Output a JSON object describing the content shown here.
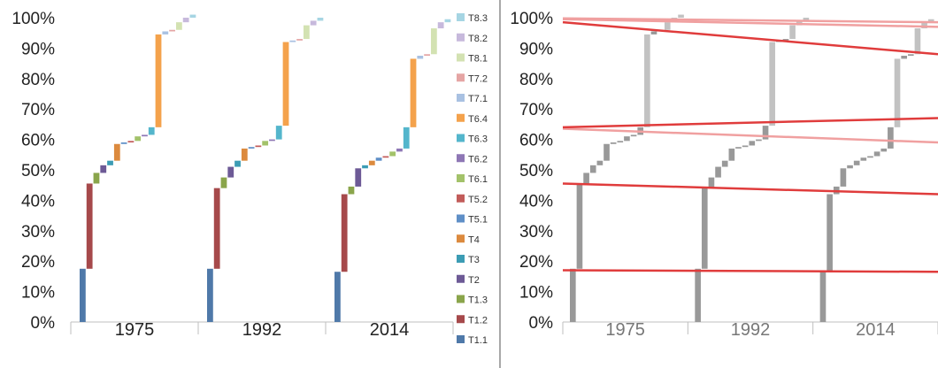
{
  "chart_data": [
    {
      "type": "bar",
      "subtype": "waterfall",
      "title": "",
      "xlabel": "",
      "ylabel": "",
      "ylim": [
        0,
        100
      ],
      "y_ticks": [
        "0%",
        "10%",
        "20%",
        "30%",
        "40%",
        "50%",
        "60%",
        "70%",
        "80%",
        "90%",
        "100%"
      ],
      "categories": [
        "1975",
        "1992",
        "2014"
      ],
      "legend": {
        "position": "right"
      },
      "series": [
        {
          "name": "T1.1",
          "color": "#4f79a9",
          "values": [
            17.5,
            17.5,
            16.5
          ]
        },
        {
          "name": "T1.2",
          "color": "#a6494b",
          "values": [
            28,
            26.5,
            25.5
          ]
        },
        {
          "name": "T1.3",
          "color": "#8aa54b",
          "values": [
            3.5,
            3.5,
            2.5
          ]
        },
        {
          "name": "T2",
          "color": "#6d5a96",
          "values": [
            2.5,
            3.5,
            6
          ]
        },
        {
          "name": "T3",
          "color": "#3c9cb4",
          "values": [
            1.5,
            2,
            1
          ]
        },
        {
          "name": "T4",
          "color": "#dc8a3e",
          "values": [
            5.5,
            4,
            1.5
          ]
        },
        {
          "name": "T5.1",
          "color": "#5f8fc7",
          "values": [
            0.5,
            0.5,
            1
          ]
        },
        {
          "name": "T5.2",
          "color": "#c25c5a",
          "values": [
            0.5,
            0.5,
            0.5
          ]
        },
        {
          "name": "T6.1",
          "color": "#a3c26a",
          "values": [
            1.5,
            1.5,
            1.5
          ]
        },
        {
          "name": "T6.2",
          "color": "#8e77b5",
          "values": [
            0.5,
            0.5,
            1
          ]
        },
        {
          "name": "T6.3",
          "color": "#54b6cc",
          "values": [
            2.5,
            4.5,
            7
          ]
        },
        {
          "name": "T6.4",
          "color": "#f4a24c",
          "values": [
            30.5,
            27.5,
            22.5
          ]
        },
        {
          "name": "T7.1",
          "color": "#a9c1e2",
          "values": [
            1,
            0.5,
            1
          ]
        },
        {
          "name": "T7.2",
          "color": "#e5a5a4",
          "values": [
            0.5,
            0.5,
            0.5
          ]
        },
        {
          "name": "T8.1",
          "color": "#d3e2b2",
          "values": [
            2.5,
            4.5,
            8.5
          ]
        },
        {
          "name": "T8.2",
          "color": "#c7b9dc",
          "values": [
            1.5,
            1.5,
            2
          ]
        },
        {
          "name": "T8.3",
          "color": "#a6d5e3",
          "values": [
            1,
            1,
            1
          ]
        }
      ]
    },
    {
      "type": "bar",
      "subtype": "waterfall",
      "title": "",
      "xlabel": "",
      "ylabel": "",
      "ylim": [
        0,
        100
      ],
      "y_ticks": [
        "0%",
        "10%",
        "20%",
        "30%",
        "40%",
        "50%",
        "60%",
        "70%",
        "80%",
        "90%",
        "100%"
      ],
      "categories": [
        "1975",
        "1992",
        "2014"
      ],
      "bar_colors": [
        "#999999",
        "#c2c2c2"
      ],
      "overlay_lines": [
        {
          "color": "#e03c3c",
          "y_start": 17,
          "y_end": 16.5
        },
        {
          "color": "#e03c3c",
          "y_start": 45.5,
          "y_end": 42
        },
        {
          "color": "#f0a0a0",
          "y_start": 63.5,
          "y_end": 59
        },
        {
          "color": "#e03c3c",
          "y_start": 64,
          "y_end": 67
        },
        {
          "color": "#e03c3c",
          "y_start": 98.5,
          "y_end": 88
        },
        {
          "color": "#f0a0a0",
          "y_start": 99.5,
          "y_end": 97
        },
        {
          "color": "#f0a0a0",
          "y_start": 99.8,
          "y_end": 98.5
        }
      ]
    }
  ]
}
